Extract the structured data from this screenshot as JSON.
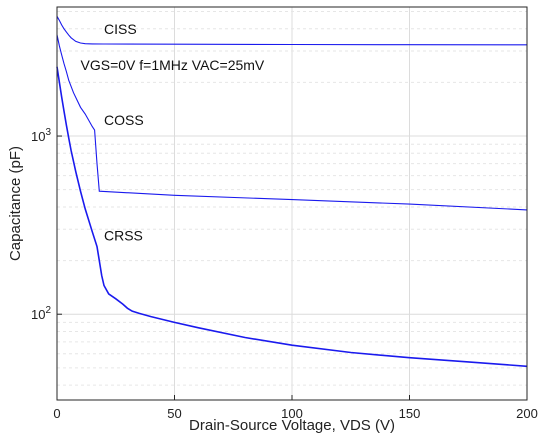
{
  "chart_data": {
    "type": "line",
    "xlabel": "Drain-Source Voltage, VDS (V)",
    "ylabel": "Capacitance (pF)",
    "x_scale": "linear",
    "y_scale": "log",
    "xlim": [
      0,
      200
    ],
    "ylim": [
      33,
      5300
    ],
    "x_ticks": [
      0,
      50,
      100,
      150,
      200
    ],
    "y_ticks": [
      {
        "value": 100,
        "base": "10",
        "exp": "2"
      },
      {
        "value": 1000,
        "base": "10",
        "exp": "3"
      }
    ],
    "grid": true,
    "line_color": "#1a1aee",
    "series": [
      {
        "name": "CISS",
        "x": [
          0,
          1,
          2,
          3,
          4,
          5,
          6,
          8,
          10,
          12,
          15,
          20,
          30,
          50,
          100,
          150,
          200
        ],
        "y": [
          4700,
          4450,
          4200,
          4000,
          3830,
          3680,
          3560,
          3400,
          3330,
          3300,
          3290,
          3285,
          3280,
          3275,
          3265,
          3258,
          3250
        ]
      },
      {
        "name": "COSS",
        "x": [
          0,
          1,
          2,
          3,
          4,
          5,
          7,
          10,
          12,
          15,
          16,
          17,
          18,
          50,
          100,
          150,
          200
        ],
        "y": [
          3700,
          3200,
          2850,
          2550,
          2300,
          2050,
          1750,
          1450,
          1330,
          1130,
          1080,
          700,
          490,
          465,
          440,
          415,
          385
        ]
      },
      {
        "name": "CRSS",
        "x": [
          0,
          1,
          2,
          3,
          4,
          5,
          6,
          8,
          10,
          12,
          15,
          17,
          18,
          19,
          20,
          22,
          25,
          28,
          30,
          32,
          35,
          40,
          50,
          60,
          80,
          100,
          125,
          150,
          175,
          200
        ],
        "y": [
          2450,
          2000,
          1650,
          1380,
          1150,
          970,
          830,
          630,
          490,
          390,
          290,
          240,
          200,
          165,
          145,
          130,
          122,
          114,
          108,
          104,
          101,
          97,
          90,
          84,
          74,
          67,
          61,
          57,
          54,
          51
        ]
      }
    ],
    "annotations": [
      {
        "text": "CISS",
        "x": 20,
        "y": 3750
      },
      {
        "text": "VGS=0V f=1MHz VAC=25mV",
        "x": 10,
        "y": 2350
      },
      {
        "text": "COSS",
        "x": 20,
        "y": 1150
      },
      {
        "text": "CRSS",
        "x": 20,
        "y": 260
      }
    ]
  }
}
